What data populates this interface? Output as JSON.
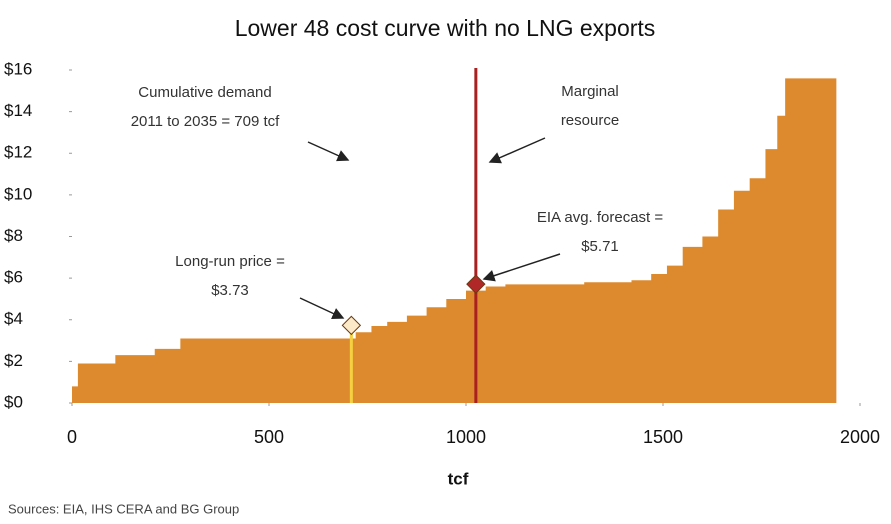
{
  "chart_data": {
    "type": "step-area",
    "title": "Lower 48 cost curve with no LNG exports",
    "x_label": "tcf",
    "source": "Sources: EIA, IHS CERA and BG Group",
    "color": "#dd8a2e",
    "x": [
      0,
      15,
      110,
      210,
      275,
      690,
      720,
      760,
      800,
      850,
      900,
      950,
      1000,
      1050,
      1100,
      1300,
      1420,
      1470,
      1510,
      1550,
      1600,
      1640,
      1680,
      1720,
      1760,
      1790,
      1810,
      1940
    ],
    "values": [
      0.8,
      1.9,
      2.3,
      2.6,
      3.1,
      3.1,
      3.4,
      3.7,
      3.9,
      4.2,
      4.6,
      5.0,
      5.4,
      5.6,
      5.7,
      5.8,
      5.9,
      6.2,
      6.6,
      7.5,
      8.0,
      9.3,
      10.2,
      10.8,
      12.2,
      13.8,
      15.6,
      15.6
    ],
    "xlim": [
      0,
      2000
    ],
    "xticks": [
      0,
      500,
      1000,
      1500,
      2000
    ],
    "ylim": [
      0,
      16
    ],
    "yticks": [
      {
        "value": 0,
        "label": "$0"
      },
      {
        "value": 2,
        "label": "$2"
      },
      {
        "value": 4,
        "label": "$4"
      },
      {
        "value": 6,
        "label": "$6"
      },
      {
        "value": 8,
        "label": "$8"
      },
      {
        "value": 10,
        "label": "$10"
      },
      {
        "value": 12,
        "label": "$12"
      },
      {
        "value": 14,
        "label": "$14"
      },
      {
        "value": 16,
        "label": "$16"
      }
    ],
    "markers": [
      {
        "name": "long-run",
        "x": 709,
        "y": 3.73,
        "line_color": "#f5d040",
        "color": "#fbe9c8"
      },
      {
        "name": "marginal",
        "x": 1025,
        "y": 5.71,
        "line_color": "#a82020",
        "color": "#b02828"
      }
    ],
    "annotations": [
      {
        "lines": [
          "Cumulative demand",
          "2011 to 2035 = 709 tcf"
        ]
      },
      {
        "lines": [
          "Marginal",
          "resource"
        ]
      },
      {
        "lines": [
          "EIA avg. forecast =",
          "$5.71"
        ]
      },
      {
        "lines": [
          "Long-run price =",
          "$3.73"
        ]
      }
    ]
  }
}
